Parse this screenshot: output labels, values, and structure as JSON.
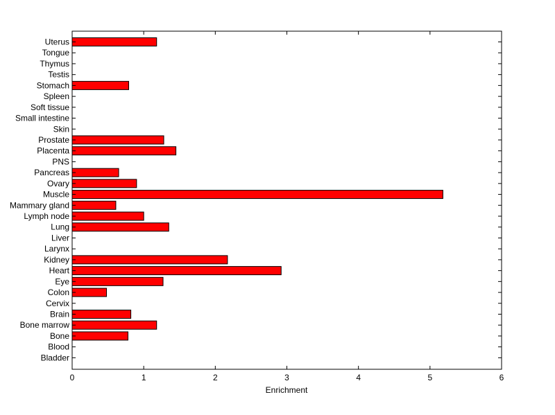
{
  "chart_data": {
    "type": "bar",
    "orientation": "horizontal",
    "title": "",
    "xlabel": "Enrichment",
    "ylabel": "",
    "xlim": [
      0,
      6
    ],
    "xticks": [
      "0",
      "1",
      "2",
      "3",
      "4",
      "5",
      "6"
    ],
    "grid": false,
    "bar_color": "#ff0000",
    "categories": [
      "Uterus",
      "Tongue",
      "Thymus",
      "Testis",
      "Stomach",
      "Spleen",
      "Soft tissue",
      "Small intestine",
      "Skin",
      "Prostate",
      "Placenta",
      "PNS",
      "Pancreas",
      "Ovary",
      "Muscle",
      "Mammary gland",
      "Lymph node",
      "Lung",
      "Liver",
      "Larynx",
      "Kidney",
      "Heart",
      "Eye",
      "Colon",
      "Cervix",
      "Brain",
      "Bone marrow",
      "Bone",
      "Blood",
      "Bladder"
    ],
    "values": [
      1.18,
      0,
      0,
      0,
      0.79,
      0,
      0,
      0,
      0,
      1.28,
      1.45,
      0,
      0.65,
      0.9,
      5.18,
      0.61,
      1.0,
      1.35,
      0,
      0,
      2.17,
      2.92,
      1.27,
      0.48,
      0,
      0.82,
      1.18,
      0.78,
      0,
      0
    ]
  }
}
